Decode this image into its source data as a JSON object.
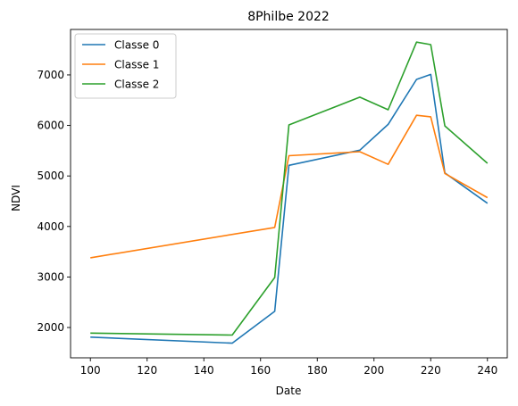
{
  "chart_data": {
    "type": "line",
    "title": "8Philbe 2022",
    "xlabel": "Date",
    "ylabel": "NDVI",
    "xlim": [
      93.0,
      247.0
    ],
    "ylim": [
      1400,
      7900
    ],
    "xticks": [
      100,
      120,
      140,
      160,
      180,
      200,
      220,
      240
    ],
    "yticks": [
      2000,
      3000,
      4000,
      5000,
      6000,
      7000
    ],
    "grid": false,
    "legend_position": "top-left",
    "series": [
      {
        "name": "Classe 0",
        "color": "#1f77b4",
        "x": [
          100,
          150,
          165,
          170,
          195,
          205,
          215,
          220,
          225,
          240
        ],
        "y": [
          1810,
          1690,
          2320,
          5210,
          5510,
          6020,
          6910,
          7010,
          5060,
          4460
        ]
      },
      {
        "name": "Classe 1",
        "color": "#ff7f0e",
        "x": [
          100,
          165,
          170,
          195,
          205,
          215,
          220,
          225,
          240
        ],
        "y": [
          3380,
          3980,
          5400,
          5480,
          5230,
          6200,
          6170,
          5050,
          4570
        ]
      },
      {
        "name": "Classe 2",
        "color": "#2ca02c",
        "x": [
          100,
          150,
          165,
          170,
          195,
          205,
          215,
          220,
          225,
          240
        ],
        "y": [
          1890,
          1850,
          2990,
          6010,
          6560,
          6310,
          7650,
          7600,
          5990,
          5250
        ]
      }
    ]
  }
}
